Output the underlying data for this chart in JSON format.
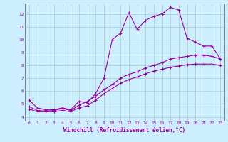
{
  "xlabel": "Windchill (Refroidissement éolien,°C)",
  "bg_color": "#cceeff",
  "grid_color": "#aacccc",
  "line_color": "#990099",
  "xlim": [
    -0.5,
    23.5
  ],
  "ylim": [
    3.7,
    12.8
  ],
  "xticks": [
    0,
    1,
    2,
    3,
    4,
    5,
    6,
    7,
    8,
    9,
    10,
    11,
    12,
    13,
    14,
    15,
    16,
    17,
    18,
    19,
    20,
    21,
    22,
    23
  ],
  "yticks": [
    4,
    5,
    6,
    7,
    8,
    9,
    10,
    11,
    12
  ],
  "line1_x": [
    0,
    1,
    2,
    3,
    4,
    5,
    6,
    7,
    8,
    9,
    10,
    11,
    12,
    13,
    14,
    15,
    16,
    17,
    18,
    19,
    20,
    21,
    22,
    23
  ],
  "line1_y": [
    5.3,
    4.7,
    4.55,
    4.55,
    4.7,
    4.55,
    5.2,
    5.1,
    5.8,
    7.0,
    10.0,
    10.5,
    12.1,
    10.8,
    11.5,
    11.8,
    12.0,
    12.5,
    12.3,
    10.1,
    9.8,
    9.5,
    9.5,
    8.5
  ],
  "line2_x": [
    0,
    1,
    2,
    3,
    4,
    5,
    6,
    7,
    8,
    9,
    10,
    11,
    12,
    13,
    14,
    15,
    16,
    17,
    18,
    19,
    20,
    21,
    22,
    23
  ],
  "line2_y": [
    4.8,
    4.5,
    4.45,
    4.5,
    4.65,
    4.5,
    4.9,
    5.2,
    5.6,
    6.1,
    6.5,
    7.0,
    7.3,
    7.5,
    7.8,
    8.0,
    8.2,
    8.5,
    8.6,
    8.7,
    8.8,
    8.8,
    8.7,
    8.5
  ],
  "line3_x": [
    0,
    1,
    2,
    3,
    4,
    5,
    6,
    7,
    8,
    9,
    10,
    11,
    12,
    13,
    14,
    15,
    16,
    17,
    18,
    19,
    20,
    21,
    22,
    23
  ],
  "line3_y": [
    4.6,
    4.4,
    4.4,
    4.4,
    4.5,
    4.4,
    4.7,
    4.85,
    5.3,
    5.8,
    6.2,
    6.6,
    6.9,
    7.1,
    7.35,
    7.55,
    7.7,
    7.85,
    7.95,
    8.05,
    8.1,
    8.1,
    8.1,
    8.0
  ]
}
